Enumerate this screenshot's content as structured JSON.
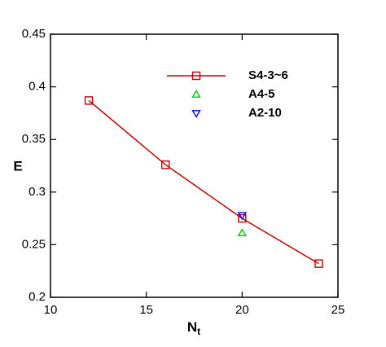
{
  "chart_data": {
    "type": "line",
    "xlabel": [
      "N",
      "t"
    ],
    "ylabel": "E",
    "xlim": [
      10,
      25
    ],
    "xticks": [
      10,
      15,
      20,
      25
    ],
    "ylim": [
      0.2,
      0.45
    ],
    "yticks": [
      0.2,
      0.25,
      0.3,
      0.35,
      0.4,
      0.45
    ],
    "legend": "upper right",
    "series": [
      {
        "name": "S4-3~6",
        "color": "#c00000",
        "marker": "square",
        "line": true,
        "x": [
          12,
          16,
          20,
          24
        ],
        "values": [
          0.387,
          0.326,
          0.275,
          0.232
        ]
      },
      {
        "name": "A4-5",
        "color": "#00c800",
        "marker": "triangle-up",
        "line": false,
        "x": [
          20
        ],
        "values": [
          0.261
        ]
      },
      {
        "name": "A2-10",
        "color": "#0000ff",
        "marker": "triangle-down",
        "line": false,
        "x": [
          20
        ],
        "values": [
          0.278
        ]
      }
    ]
  }
}
